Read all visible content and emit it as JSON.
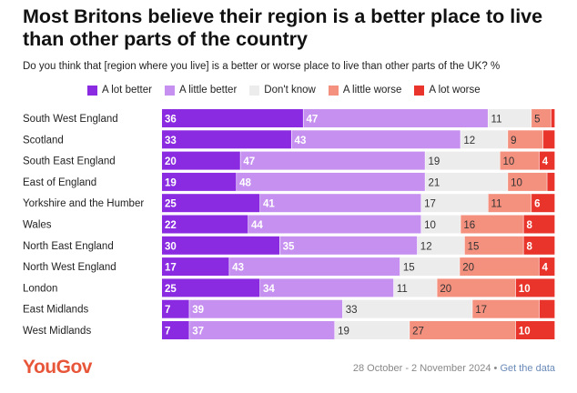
{
  "chart_data": {
    "type": "bar",
    "orientation": "horizontal-stacked-100",
    "title": "Most Britons believe their region is a better place to live than other parts of the country",
    "subtitle": "Do you think that [region where you live] is a better or worse place to live than other parts of the UK? %",
    "categories": [
      "South West England",
      "Scotland",
      "South East England",
      "East of England",
      "Yorkshire and the Humber",
      "Wales",
      "North East England",
      "North West England",
      "London",
      "East Midlands",
      "West Midlands"
    ],
    "series": [
      {
        "name": "A lot better",
        "color": "#8a2be2",
        "label_color": "#ffffff",
        "values": [
          36,
          33,
          20,
          19,
          25,
          22,
          30,
          17,
          25,
          7,
          7
        ]
      },
      {
        "name": "A little better",
        "color": "#c690f0",
        "label_color": "#ffffff",
        "values": [
          47,
          43,
          47,
          48,
          41,
          44,
          35,
          43,
          34,
          39,
          37
        ]
      },
      {
        "name": "Don't know",
        "color": "#ececec",
        "label_color": "#333333",
        "values": [
          11,
          12,
          19,
          21,
          17,
          10,
          12,
          15,
          11,
          33,
          19
        ]
      },
      {
        "name": "A little worse",
        "color": "#f4907e",
        "label_color": "#333333",
        "values": [
          5,
          9,
          10,
          10,
          11,
          16,
          15,
          20,
          20,
          17,
          27
        ]
      },
      {
        "name": "A lot worse",
        "color": "#e8342a",
        "label_color": "#ffffff",
        "values": [
          1,
          3,
          4,
          2,
          6,
          8,
          8,
          4,
          10,
          4,
          10
        ]
      }
    ],
    "value_labels": [
      [
        "36",
        "47",
        "11",
        "5",
        ""
      ],
      [
        "33",
        "43",
        "12",
        "9",
        ""
      ],
      [
        "20",
        "47",
        "19",
        "10",
        "4"
      ],
      [
        "19",
        "48",
        "21",
        "10",
        ""
      ],
      [
        "25",
        "41",
        "17",
        "11",
        "6"
      ],
      [
        "22",
        "44",
        "10",
        "16",
        "8"
      ],
      [
        "30",
        "35",
        "12",
        "15",
        "8"
      ],
      [
        "17",
        "43",
        "15",
        "20",
        "4"
      ],
      [
        "25",
        "34",
        "11",
        "20",
        "10"
      ],
      [
        "7",
        "39",
        "33",
        "17",
        ""
      ],
      [
        "7",
        "37",
        "19",
        "27",
        "10"
      ]
    ],
    "xlim": [
      0,
      100
    ]
  },
  "footer": {
    "logo": "YouGov",
    "dates": "28 October - 2 November 2024 • ",
    "link": "Get the data"
  }
}
